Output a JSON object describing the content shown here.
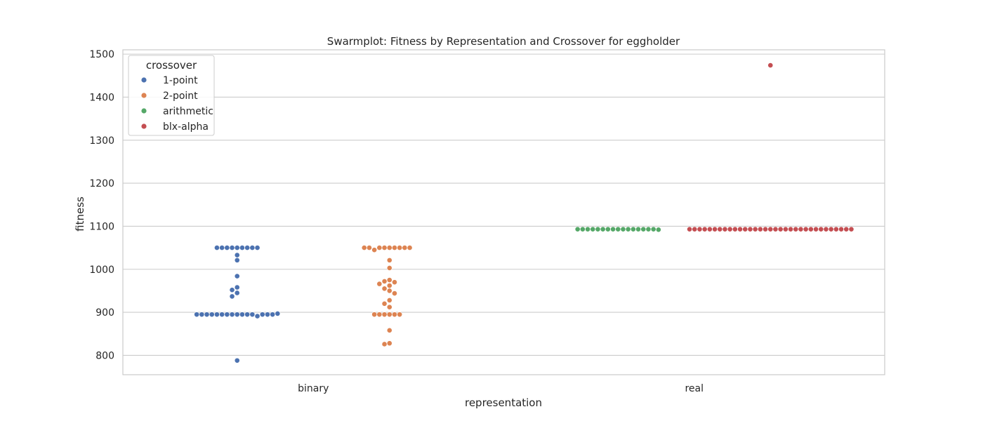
{
  "chart_data": {
    "type": "scatter",
    "subtype": "swarm",
    "title": "Swarmplot: Fitness by Representation and Crossover for eggholder",
    "xlabel": "representation",
    "ylabel": "fitness",
    "categories": [
      "binary",
      "real"
    ],
    "yticks": [
      800,
      900,
      1000,
      1100,
      1200,
      1300,
      1400,
      1500
    ],
    "ylim": [
      755,
      1510
    ],
    "grid": true,
    "legend": {
      "title": "crossover",
      "placement": "top-left"
    },
    "series": [
      {
        "name": "1-point",
        "color": "#4c72b0",
        "category": "binary",
        "values": [
          1050,
          1050,
          1050,
          1050,
          1050,
          1050,
          1050,
          1050,
          1050,
          1033,
          1021,
          984,
          958,
          952,
          945,
          937,
          895,
          895,
          895,
          895,
          895,
          895,
          895,
          895,
          891,
          895,
          895,
          895,
          895,
          895,
          895,
          895,
          897,
          788
        ]
      },
      {
        "name": "2-point",
        "color": "#dd8452",
        "category": "binary",
        "values": [
          1050,
          1050,
          1050,
          1050,
          1050,
          1045,
          1050,
          1050,
          1050,
          1050,
          1021,
          1003,
          975,
          972,
          970,
          966,
          962,
          955,
          950,
          944,
          928,
          920,
          912,
          895,
          895,
          895,
          895,
          895,
          895,
          858,
          828,
          826
        ]
      },
      {
        "name": "arithmetic",
        "color": "#55a868",
        "category": "real",
        "values": [
          1093,
          1093,
          1093,
          1093,
          1093,
          1093,
          1093,
          1093,
          1093,
          1093,
          1093,
          1093,
          1093,
          1093,
          1093,
          1093,
          1092
        ]
      },
      {
        "name": "blx-alpha",
        "color": "#c44e52",
        "category": "real",
        "values": [
          1093,
          1093,
          1093,
          1093,
          1093,
          1093,
          1093,
          1093,
          1093,
          1093,
          1093,
          1093,
          1093,
          1093,
          1093,
          1093,
          1093,
          1093,
          1093,
          1093,
          1093,
          1093,
          1093,
          1093,
          1093,
          1093,
          1093,
          1093,
          1093,
          1093,
          1093,
          1093,
          1093,
          1474
        ]
      }
    ]
  }
}
